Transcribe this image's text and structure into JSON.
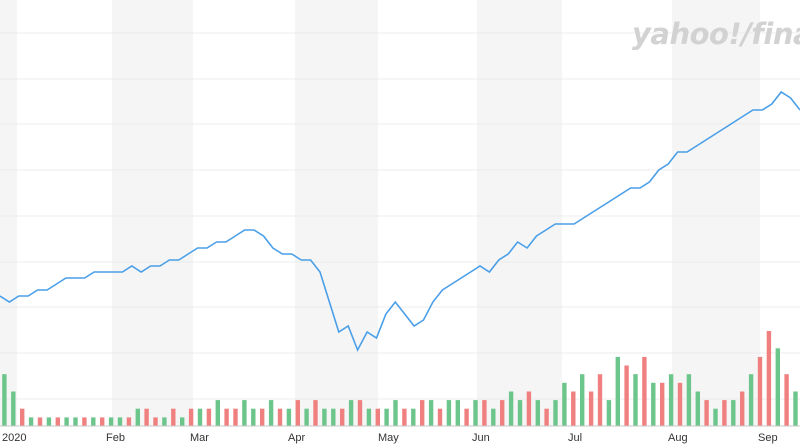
{
  "brand": {
    "text": "yahoo!/finance",
    "color": "#d2d2d2"
  },
  "chart_data": {
    "type": "line",
    "title": "",
    "xlabel": "",
    "ylabel": "",
    "grid": true,
    "month_labels": [
      "2020",
      "Feb",
      "Mar",
      "Apr",
      "May",
      "Jun",
      "Jul",
      "Aug",
      "Sep"
    ],
    "shaded_months": [
      "Jan",
      "Mar",
      "May",
      "Jul",
      "Aug-late"
    ],
    "price_series": {
      "name": "",
      "color": "#4a9fe8",
      "x": [
        0,
        2,
        4,
        6,
        8,
        10,
        12,
        14,
        16,
        18,
        20,
        22,
        24,
        26,
        28,
        30,
        32,
        34,
        36,
        38,
        40,
        42,
        44,
        46,
        48,
        50,
        52,
        54,
        56,
        58,
        60,
        62,
        64,
        66,
        68,
        70,
        72,
        74,
        76,
        78,
        80,
        82,
        84,
        86,
        88,
        90,
        92,
        94,
        96,
        98,
        100,
        102,
        104,
        106,
        108,
        110,
        112,
        114,
        116,
        118,
        120,
        122,
        124,
        126,
        128,
        130,
        132,
        134,
        136,
        138,
        140,
        142,
        144,
        146,
        148,
        150,
        152,
        154,
        156,
        158,
        160,
        162,
        164,
        166,
        168,
        170
      ],
      "y": [
        49,
        48,
        49,
        49,
        50,
        50,
        51,
        52,
        52,
        52,
        53,
        53,
        53,
        53,
        54,
        53,
        54,
        54,
        55,
        55,
        56,
        57,
        57,
        58,
        58,
        59,
        60,
        60,
        59,
        57,
        56,
        56,
        55,
        55,
        53,
        48,
        43,
        44,
        40,
        43,
        42,
        46,
        48,
        46,
        44,
        45,
        48,
        50,
        51,
        52,
        53,
        54,
        53,
        55,
        56,
        58,
        57,
        59,
        60,
        61,
        61,
        61,
        62,
        63,
        64,
        65,
        66,
        67,
        67,
        68,
        70,
        71,
        73,
        73,
        74,
        75,
        76,
        77,
        78,
        79,
        80,
        80,
        81,
        83,
        82,
        80
      ],
      "y_range": [
        35,
        90
      ]
    },
    "volume_series": {
      "up_color": "#6cc58a",
      "down_color": "#f08080",
      "values": [
        6,
        4,
        2,
        1,
        1,
        1,
        1,
        1,
        1,
        1,
        1,
        1,
        1,
        1,
        1,
        2,
        2,
        1,
        1,
        2,
        1,
        2,
        2,
        2,
        3,
        2,
        2,
        3,
        2,
        2,
        3,
        2,
        2,
        3,
        2,
        3,
        2,
        2,
        2,
        3,
        3,
        2,
        2,
        2,
        3,
        2,
        2,
        3,
        3,
        2,
        3,
        3,
        2,
        3,
        3,
        2,
        3,
        4,
        3,
        4,
        3,
        2,
        3,
        5,
        4,
        6,
        4,
        6,
        3,
        8,
        7,
        6,
        8,
        5,
        5,
        6,
        5,
        6,
        4,
        3,
        2,
        3,
        3,
        4,
        6,
        8,
        11,
        9,
        6,
        4
      ],
      "directions": [
        "u",
        "u",
        "d",
        "u",
        "d",
        "u",
        "d",
        "u",
        "u",
        "d",
        "u",
        "d",
        "u",
        "u",
        "d",
        "u",
        "d",
        "d",
        "u",
        "d",
        "u",
        "d",
        "u",
        "d",
        "u",
        "d",
        "d",
        "u",
        "u",
        "d",
        "u",
        "d",
        "u",
        "d",
        "u",
        "d",
        "u",
        "u",
        "d",
        "u",
        "d",
        "u",
        "d",
        "u",
        "u",
        "d",
        "u",
        "d",
        "u",
        "d",
        "u",
        "u",
        "d",
        "u",
        "d",
        "u",
        "d",
        "u",
        "u",
        "d",
        "u",
        "d",
        "u",
        "u",
        "d",
        "u",
        "d",
        "d",
        "u",
        "u",
        "d",
        "u",
        "d",
        "u",
        "d",
        "u",
        "d",
        "u",
        "u",
        "d",
        "u",
        "d",
        "u",
        "d",
        "u",
        "d",
        "d",
        "u",
        "d",
        "u"
      ]
    }
  }
}
